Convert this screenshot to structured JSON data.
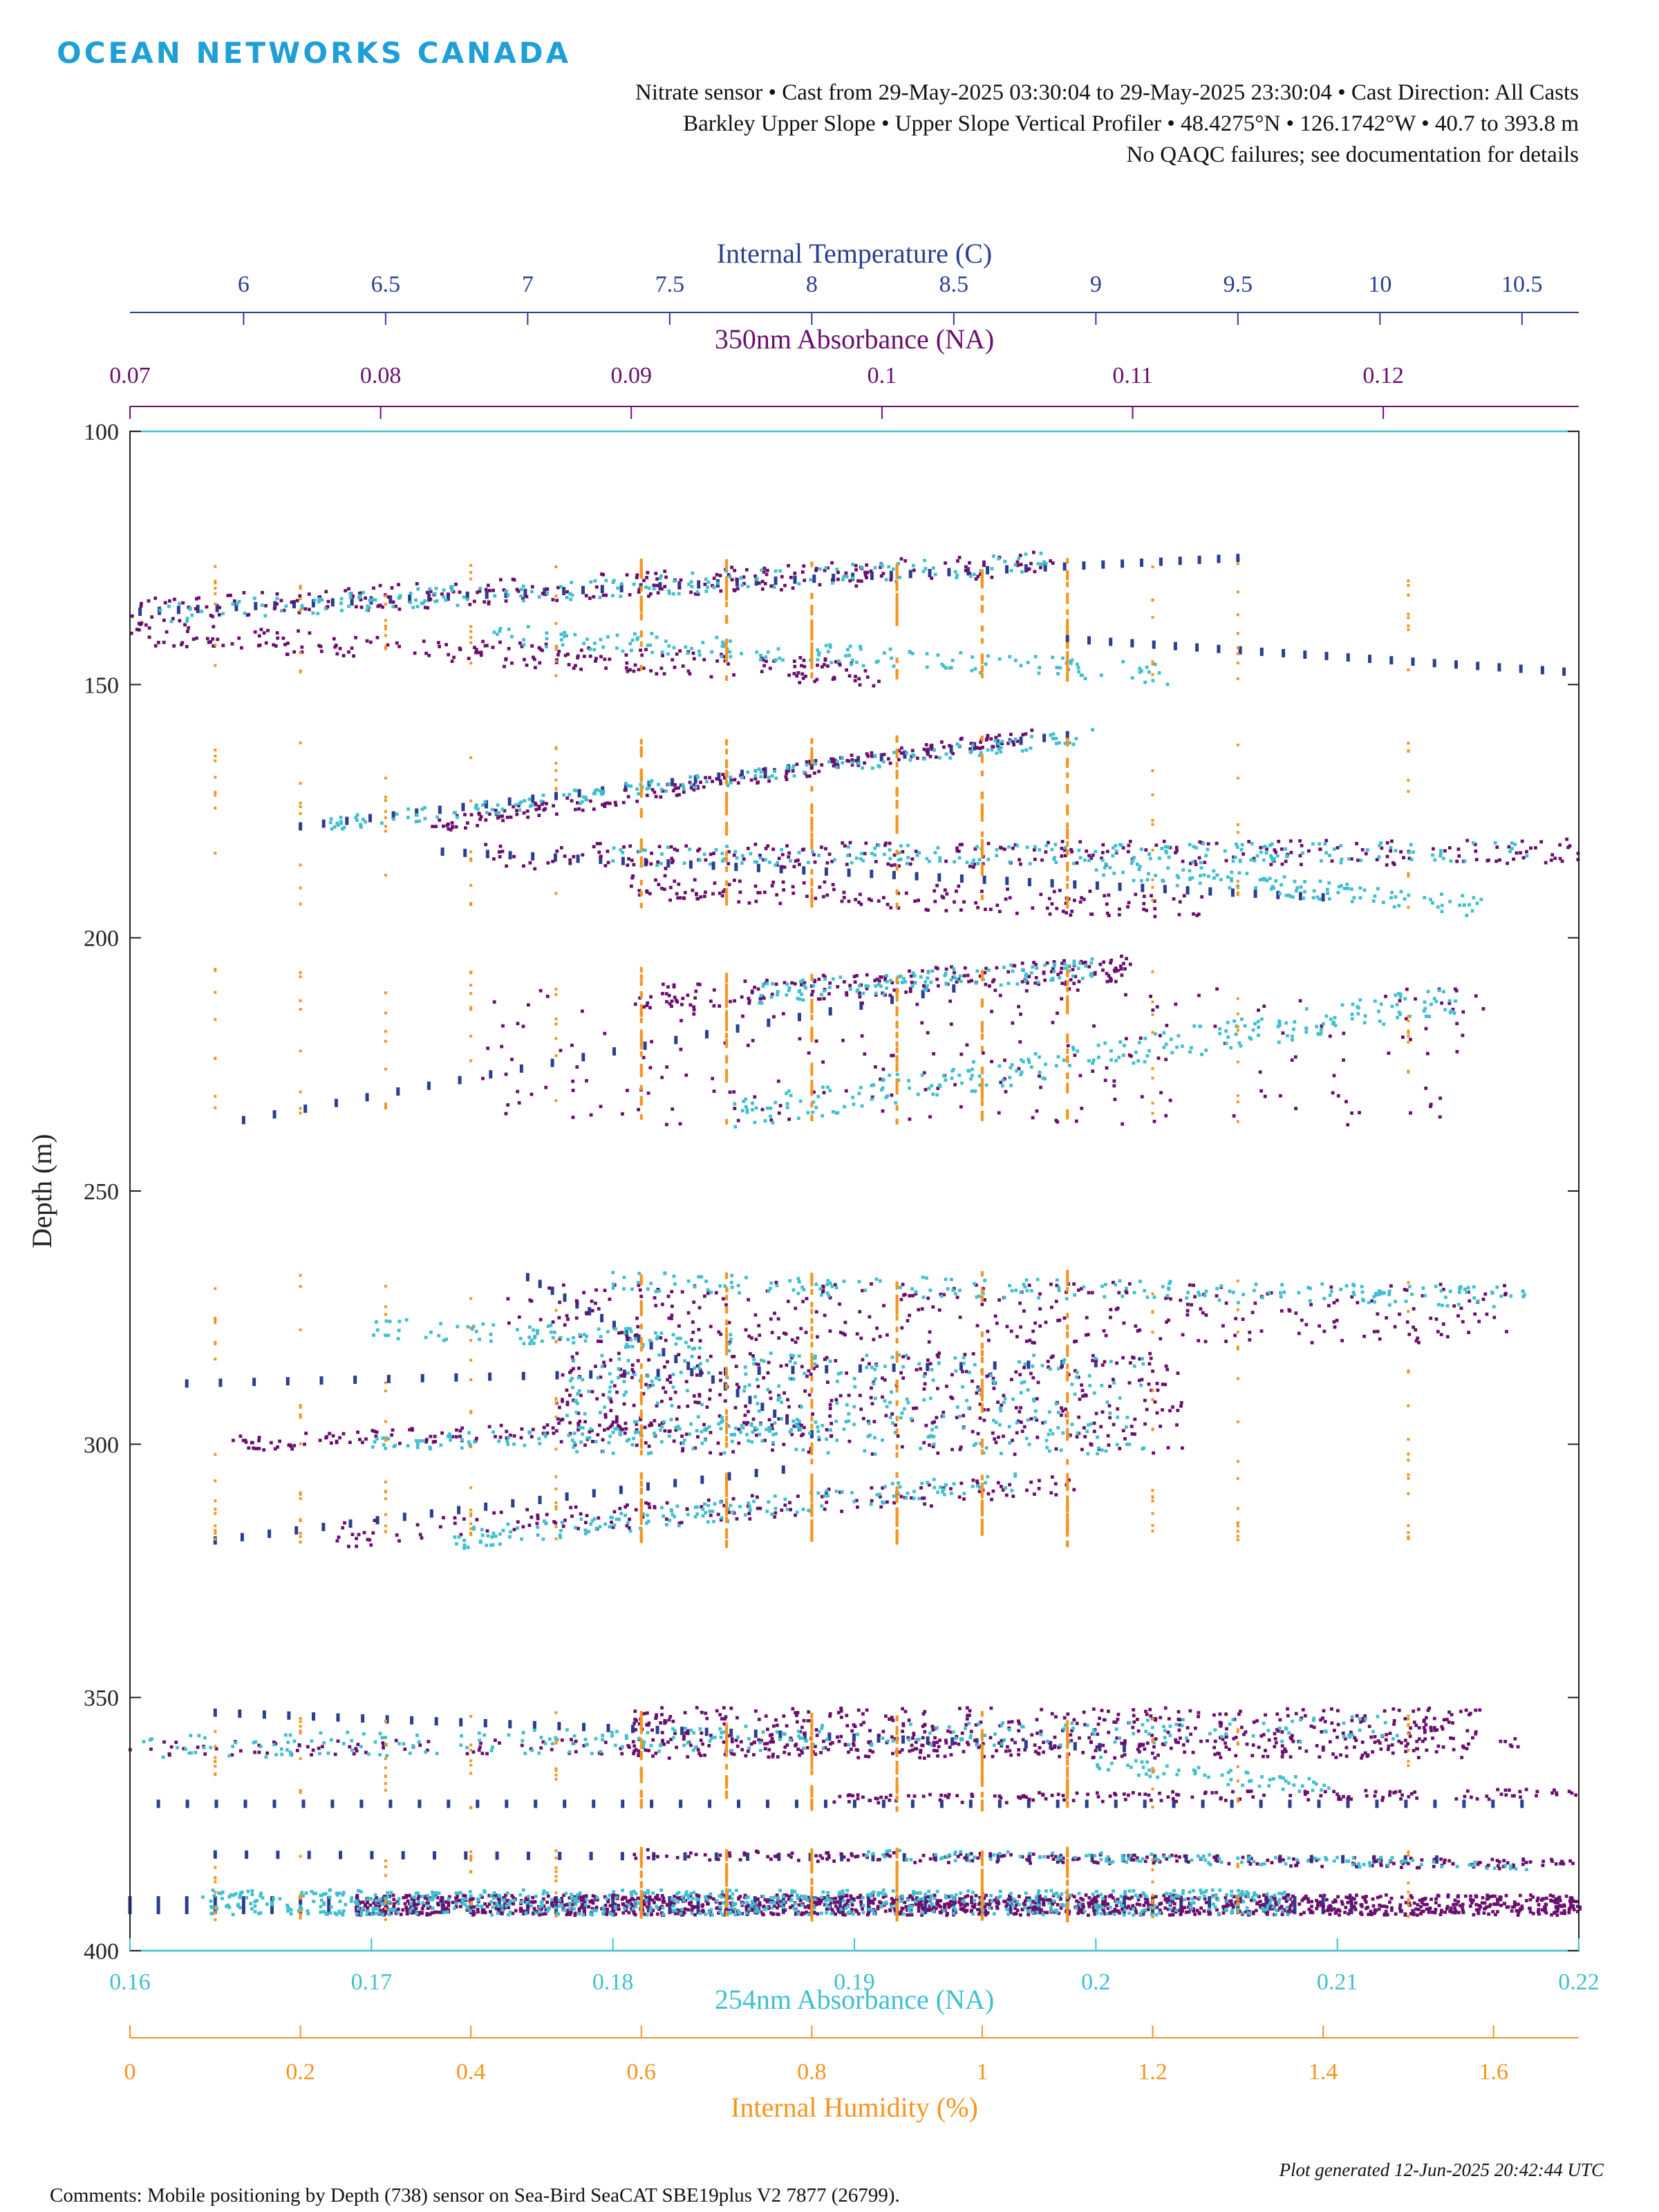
{
  "logo": {
    "text": "OCEAN NETWORKS CANADA"
  },
  "header": {
    "line1": "Nitrate sensor • Cast from 29-May-2025 03:30:04 to 29-May-2025 23:30:04 • Cast Direction: All Casts",
    "line2": "Barkley Upper Slope • Upper Slope Vertical Profiler • 48.4275°N • 126.1742°W • 40.7 to 393.8 m",
    "line3": "No QAQC failures; see documentation for details"
  },
  "footer": {
    "comments": "Comments: Mobile positioning by Depth (738) sensor on Sea-Bird SeaCAT SBE19plus V2 7877 (26799).",
    "generated": "Plot generated 12-Jun-2025 20:42:44 UTC"
  },
  "chart_data": {
    "type": "scatter",
    "ylabel": "Depth (m)",
    "ylim": [
      100,
      400
    ],
    "y_reversed": true,
    "yticks": [
      100,
      150,
      200,
      250,
      300,
      350,
      400
    ],
    "axes": {
      "temperature": {
        "label": "Internal Temperature (C)",
        "position": "top",
        "lim": [
          5.6,
          10.7
        ],
        "ticks": [
          6,
          6.5,
          7,
          7.5,
          8,
          8.5,
          9,
          9.5,
          10,
          10.5
        ],
        "color": "#2c3e8f"
      },
      "abs350": {
        "label": "350nm Absorbance (NA)",
        "position": "top",
        "lim": [
          0.07,
          0.1278
        ],
        "ticks": [
          0.07,
          0.08,
          0.09,
          0.1,
          0.11,
          0.12
        ],
        "color": "#6a0f6e"
      },
      "abs254": {
        "label": "254nm Absorbance (NA)",
        "position": "bottom",
        "lim": [
          0.16,
          0.22
        ],
        "ticks": [
          0.16,
          0.17,
          0.18,
          0.19,
          0.2,
          0.21,
          0.22
        ],
        "color": "#3fbfcf"
      },
      "humidity": {
        "label": "Internal Humidity (%)",
        "position": "bottom",
        "lim": [
          0,
          1.7
        ],
        "ticks": [
          0,
          0.2,
          0.4,
          0.6,
          0.8,
          1,
          1.2,
          1.4,
          1.6
        ],
        "color": "#f7941d"
      }
    },
    "series": [
      {
        "axis": "temperature",
        "color": "#2c3e8f",
        "marker": "dash",
        "groups": [
          {
            "kind": "line",
            "from": [
              5.5,
              136
            ],
            "to": [
              9.5,
              125
            ],
            "n": 60
          },
          {
            "kind": "line",
            "from": [
              8.9,
              141
            ],
            "to": [
              10.8,
              148
            ],
            "n": 26
          },
          {
            "kind": "line",
            "from": [
              6.2,
              178
            ],
            "to": [
              8.9,
              160
            ],
            "n": 34
          },
          {
            "kind": "line",
            "from": [
              6.7,
              183
            ],
            "to": [
              9.8,
              192
            ],
            "n": 40
          },
          {
            "kind": "line",
            "from": [
              6.0,
              236
            ],
            "to": [
              8.5,
              210
            ],
            "n": 24
          },
          {
            "kind": "line",
            "from": [
              5.8,
              288
            ],
            "to": [
              9.0,
              284
            ],
            "n": 28
          },
          {
            "kind": "line",
            "from": [
              7.0,
              267
            ],
            "to": [
              8.0,
              298
            ],
            "n": 24
          },
          {
            "kind": "line",
            "from": [
              5.9,
              319
            ],
            "to": [
              7.9,
              305
            ],
            "n": 22
          },
          {
            "kind": "line",
            "from": [
              5.9,
              353
            ],
            "to": [
              9.1,
              360
            ],
            "n": 38
          },
          {
            "kind": "line",
            "from": [
              5.7,
              371
            ],
            "to": [
              10.5,
              371
            ],
            "n": 48
          },
          {
            "kind": "line",
            "from": [
              5.9,
              381
            ],
            "to": [
              10.2,
              382
            ],
            "n": 40
          },
          {
            "kind": "line",
            "from": [
              5.6,
              391
            ],
            "to": [
              9.9,
              391
            ],
            "n": 44,
            "tall": true
          }
        ]
      },
      {
        "axis": "abs350",
        "color": "#6a0f6e",
        "marker": "dot",
        "groups": [
          {
            "kind": "band",
            "from": [
              0.068,
              136
            ],
            "to": [
              0.107,
              126
            ],
            "n": 260,
            "spread": 2.5
          },
          {
            "kind": "band",
            "from": [
              0.07,
              140
            ],
            "to": [
              0.1,
              148
            ],
            "n": 220,
            "spread": 2.5
          },
          {
            "kind": "band",
            "from": [
              0.082,
              178
            ],
            "to": [
              0.106,
              160
            ],
            "n": 220,
            "spread": 1.5
          },
          {
            "kind": "band",
            "from": [
              0.084,
              184
            ],
            "to": [
              0.128,
              183
            ],
            "n": 260,
            "spread": 2.5
          },
          {
            "kind": "band",
            "from": [
              0.09,
              190
            ],
            "to": [
              0.113,
              194
            ],
            "n": 160,
            "spread": 2.5
          },
          {
            "kind": "band",
            "from": [
              0.09,
              212
            ],
            "to": [
              0.11,
              206
            ],
            "n": 200,
            "spread": 2.5
          },
          {
            "kind": "cloud",
            "x": [
              0.084,
              0.124
            ],
            "y": [
              210,
              237
            ],
            "n": 220
          },
          {
            "kind": "cloud",
            "x": [
              0.085,
              0.125
            ],
            "y": [
              268,
              280
            ],
            "n": 320
          },
          {
            "kind": "cloud",
            "x": [
              0.087,
              0.112
            ],
            "y": [
              282,
              302
            ],
            "n": 420
          },
          {
            "kind": "band",
            "from": [
              0.074,
              300
            ],
            "to": [
              0.092,
              296
            ],
            "n": 120,
            "spread": 1.5
          },
          {
            "kind": "band",
            "from": [
              0.078,
              318
            ],
            "to": [
              0.108,
              308
            ],
            "n": 160,
            "spread": 2.5
          },
          {
            "kind": "cloud",
            "x": [
              0.09,
              0.124
            ],
            "y": [
              352,
              362
            ],
            "n": 520
          },
          {
            "kind": "band",
            "from": [
              0.07,
              360
            ],
            "to": [
              0.126,
              359
            ],
            "n": 200,
            "spread": 1.5
          },
          {
            "kind": "band",
            "from": [
              0.098,
              370
            ],
            "to": [
              0.13,
              369
            ],
            "n": 160,
            "spread": 1
          },
          {
            "kind": "band",
            "from": [
              0.09,
              381
            ],
            "to": [
              0.128,
              383
            ],
            "n": 220,
            "spread": 1
          },
          {
            "kind": "cloud",
            "x": [
              0.079,
              0.128
            ],
            "y": [
              389,
              393
            ],
            "n": 1500
          }
        ]
      },
      {
        "axis": "abs254",
        "color": "#3fbfcf",
        "marker": "dot",
        "groups": [
          {
            "kind": "band",
            "from": [
              0.161,
              136
            ],
            "to": [
              0.198,
              126
            ],
            "n": 180,
            "spread": 2
          },
          {
            "kind": "band",
            "from": [
              0.175,
              140
            ],
            "to": [
              0.203,
              148
            ],
            "n": 160,
            "spread": 2
          },
          {
            "kind": "band",
            "from": [
              0.168,
              178
            ],
            "to": [
              0.2,
              160
            ],
            "n": 180,
            "spread": 1.5
          },
          {
            "kind": "band",
            "from": [
              0.18,
              184
            ],
            "to": [
              0.218,
              183
            ],
            "n": 200,
            "spread": 2
          },
          {
            "kind": "band",
            "from": [
              0.2,
              186
            ],
            "to": [
              0.216,
              194
            ],
            "n": 120,
            "spread": 2
          },
          {
            "kind": "band",
            "from": [
              0.186,
              211
            ],
            "to": [
              0.2,
              206
            ],
            "n": 120,
            "spread": 2
          },
          {
            "kind": "band",
            "from": [
              0.185,
              235
            ],
            "to": [
              0.215,
              212
            ],
            "n": 240,
            "spread": 3
          },
          {
            "kind": "band",
            "from": [
              0.17,
              277
            ],
            "to": [
              0.185,
              280
            ],
            "n": 90,
            "spread": 2
          },
          {
            "kind": "band",
            "from": [
              0.18,
              268
            ],
            "to": [
              0.218,
              271
            ],
            "n": 200,
            "spread": 2
          },
          {
            "kind": "cloud",
            "x": [
              0.178,
              0.202
            ],
            "y": [
              282,
              302
            ],
            "n": 320
          },
          {
            "kind": "band",
            "from": [
              0.17,
              300
            ],
            "to": [
              0.19,
              296
            ],
            "n": 100,
            "spread": 1.5
          },
          {
            "kind": "band",
            "from": [
              0.173,
              319
            ],
            "to": [
              0.197,
              307
            ],
            "n": 160,
            "spread": 2
          },
          {
            "kind": "band",
            "from": [
              0.16,
              360
            ],
            "to": [
              0.2125,
              356
            ],
            "n": 260,
            "spread": 2.5
          },
          {
            "kind": "band",
            "from": [
              0.2,
              363
            ],
            "to": [
              0.21,
              368
            ],
            "n": 60,
            "spread": 1.5
          },
          {
            "kind": "band",
            "from": [
              0.19,
              381
            ],
            "to": [
              0.218,
              383
            ],
            "n": 120,
            "spread": 1
          },
          {
            "kind": "cloud",
            "x": [
              0.163,
              0.208
            ],
            "y": [
              388,
              393
            ],
            "n": 700
          }
        ]
      },
      {
        "axis": "humidity",
        "color": "#f7941d",
        "marker": "dot",
        "columns": [
          0.1,
          0.2,
          0.3,
          0.4,
          0.5,
          0.6,
          0.7,
          0.8,
          0.9,
          1.0,
          1.1,
          1.2,
          1.3,
          1.5
        ],
        "ranges": [
          [
            125,
            149
          ],
          [
            160,
            194
          ],
          [
            206,
            237
          ],
          [
            266,
            304
          ],
          [
            306,
            320
          ],
          [
            353,
            372
          ],
          [
            380,
            394
          ]
        ],
        "dense": [
          0.6,
          0.7,
          0.8,
          0.9,
          1.0,
          1.1
        ]
      }
    ]
  }
}
